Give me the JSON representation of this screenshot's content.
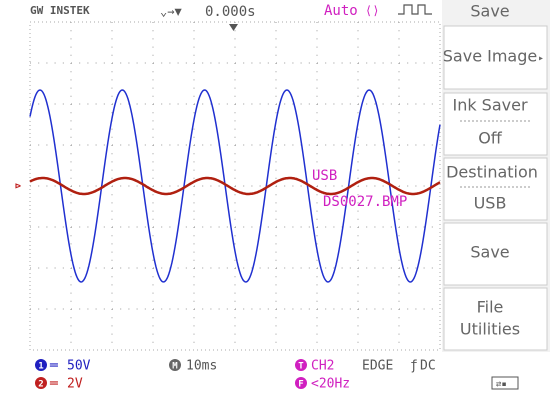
{
  "header": {
    "brand": "GW INSTEK",
    "time_offset": "0.000s",
    "trigger_mode": "Auto"
  },
  "menu": {
    "title": "Save",
    "items": [
      {
        "label": "Save Image"
      },
      {
        "label": "Ink Saver",
        "value": "Off"
      },
      {
        "label": "Destination",
        "value": "USB"
      },
      {
        "label": "Save"
      },
      {
        "label": "File Utilities"
      }
    ]
  },
  "overlay": {
    "destination": "USB",
    "filename": "DS0027.BMP"
  },
  "status": {
    "ch1_badge": "1",
    "ch1_scale": "50V",
    "ch2_badge": "2",
    "ch2_scale": "2V",
    "timebase_badge": "M",
    "timebase": "10ms",
    "trigger_badge": "T",
    "trigger_source": "CH2",
    "trigger_type": "EDGE",
    "coupling": "DC",
    "filter_badge": "F",
    "frequency": "<20Hz"
  }
}
